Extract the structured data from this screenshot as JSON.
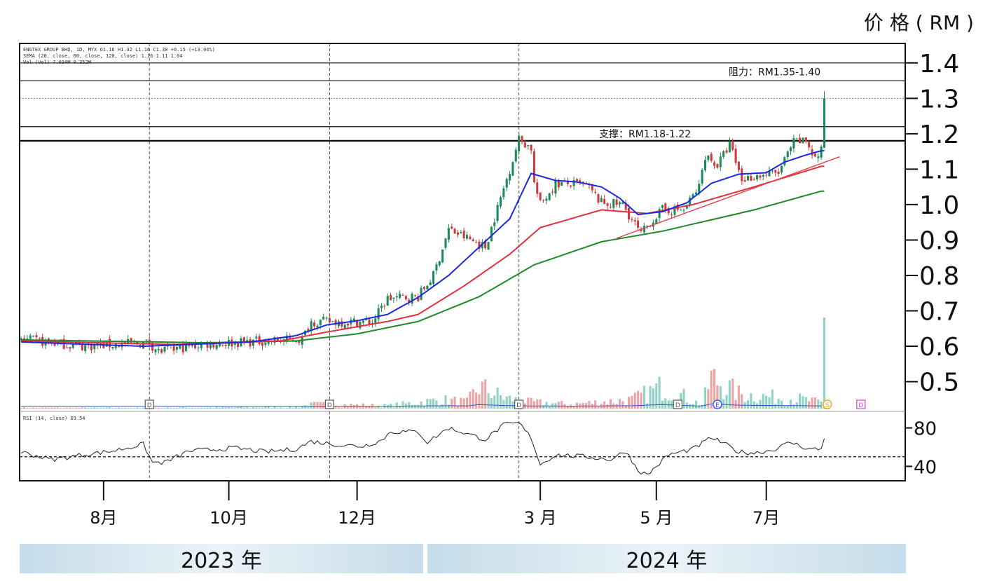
{
  "unit_label": "价 格 ( RM )",
  "legend_lines": [
    "ENGTEX GROUP BHD, 1D, MYX  O1.16 H1.32 L1.16 C1.30 +0.15 (+13.04%)",
    "3EMA (20, close, 60, close, 120, close)  1.16  1.11  1.04",
    "Vol (Vol)  7.034M  0.352M"
  ],
  "rsi_label": "RSI (14, close)  69.54",
  "chart_data": {
    "type": "candlestick",
    "title": "",
    "y_axis": {
      "ticks": [
        0.5,
        0.6,
        0.7,
        0.8,
        0.9,
        1.0,
        1.1,
        1.2,
        1.3,
        1.4
      ],
      "labels": [
        "0.5",
        "0.6",
        "0.7",
        "0.8",
        "0.9",
        "1.0",
        "1.1",
        "1.2",
        "1.3",
        "1.4"
      ],
      "ylim": [
        0.42,
        1.455
      ]
    },
    "rsi_axis": {
      "ticks": [
        40,
        80
      ],
      "labels": [
        "40",
        "80"
      ],
      "ylim": [
        25,
        95
      ],
      "reference_level": 50
    },
    "x_axis": {
      "labels": [
        "8月",
        "10月",
        "12月",
        "3 月",
        "5 月",
        "7月"
      ],
      "label_positions": [
        27,
        68,
        110,
        170,
        208,
        244
      ],
      "bars": 290
    },
    "years": [
      {
        "label": "2023 年",
        "start_bar": 0,
        "end_bar": 130
      },
      {
        "label": "2024 年",
        "start_bar": 130,
        "end_bar": 290
      }
    ],
    "event_markers": [
      {
        "bar": 42,
        "symbol": "D",
        "color": "#555555"
      },
      {
        "bar": 101,
        "symbol": "D",
        "color": "#555555"
      },
      {
        "bar": 163,
        "symbol": "D",
        "color": "#555555"
      },
      {
        "bar": 215,
        "symbol": "D",
        "color": "#555555"
      },
      {
        "bar": 228,
        "symbol": "E",
        "color": "#3355ee"
      },
      {
        "bar": 264,
        "symbol": "S",
        "color": "#f2a31b"
      },
      {
        "bar": 275,
        "symbol": "D",
        "color": "#cc44cc"
      }
    ],
    "vertical_markers": [
      42,
      101,
      163
    ],
    "zones": [
      {
        "label": "阻力：RM1.35-1.40",
        "low": 1.35,
        "high": 1.4
      },
      {
        "label": "支撑：RM1.18-1.22",
        "low": 1.18,
        "high": 1.22
      }
    ],
    "key_price_dotted": 1.3,
    "trendline": {
      "from": [
        195,
        0.905
      ],
      "to": [
        268,
        1.135
      ]
    },
    "ema_keypoints": {
      "ema20": [
        [
          0,
          0.612
        ],
        [
          40,
          0.6
        ],
        [
          75,
          0.612
        ],
        [
          90,
          0.63
        ],
        [
          100,
          0.66
        ],
        [
          110,
          0.672
        ],
        [
          120,
          0.69
        ],
        [
          130,
          0.738
        ],
        [
          140,
          0.8
        ],
        [
          150,
          0.88
        ],
        [
          160,
          0.96
        ],
        [
          167,
          1.088
        ],
        [
          175,
          1.068
        ],
        [
          182,
          1.064
        ],
        [
          190,
          1.05
        ],
        [
          196,
          1.018
        ],
        [
          202,
          0.972
        ],
        [
          210,
          0.98
        ],
        [
          218,
          1.005
        ],
        [
          226,
          1.06
        ],
        [
          235,
          1.086
        ],
        [
          244,
          1.09
        ],
        [
          250,
          1.12
        ],
        [
          257,
          1.14
        ],
        [
          262,
          1.152
        ]
      ],
      "ema60": [
        [
          0,
          0.615
        ],
        [
          50,
          0.605
        ],
        [
          85,
          0.615
        ],
        [
          100,
          0.64
        ],
        [
          120,
          0.67
        ],
        [
          130,
          0.69
        ],
        [
          145,
          0.77
        ],
        [
          160,
          0.86
        ],
        [
          170,
          0.935
        ],
        [
          190,
          0.985
        ],
        [
          205,
          0.975
        ],
        [
          220,
          1.0
        ],
        [
          240,
          1.05
        ],
        [
          262,
          1.108
        ]
      ],
      "ema120": [
        [
          0,
          0.618
        ],
        [
          60,
          0.61
        ],
        [
          90,
          0.615
        ],
        [
          110,
          0.635
        ],
        [
          130,
          0.67
        ],
        [
          150,
          0.74
        ],
        [
          160,
          0.79
        ],
        [
          168,
          0.83
        ],
        [
          190,
          0.895
        ],
        [
          210,
          0.925
        ],
        [
          240,
          0.985
        ],
        [
          262,
          1.038
        ]
      ]
    },
    "close_keypoints": [
      [
        0,
        0.62
      ],
      [
        20,
        0.6
      ],
      [
        42,
        0.61
      ],
      [
        45,
        0.585
      ],
      [
        60,
        0.606
      ],
      [
        80,
        0.615
      ],
      [
        92,
        0.62
      ],
      [
        95,
        0.67
      ],
      [
        115,
        0.668
      ],
      [
        120,
        0.735
      ],
      [
        130,
        0.74
      ],
      [
        135,
        0.8
      ],
      [
        140,
        0.93
      ],
      [
        146,
        0.905
      ],
      [
        152,
        0.88
      ],
      [
        160,
        1.1
      ],
      [
        163,
        1.185
      ],
      [
        167,
        1.16
      ],
      [
        168,
        1.06
      ],
      [
        170,
        1.0
      ],
      [
        175,
        1.06
      ],
      [
        185,
        1.055
      ],
      [
        190,
        1.005
      ],
      [
        197,
        1.0
      ],
      [
        203,
        0.915
      ],
      [
        205,
        0.94
      ],
      [
        210,
        0.985
      ],
      [
        217,
        0.985
      ],
      [
        222,
        1.05
      ],
      [
        224,
        1.14
      ],
      [
        228,
        1.11
      ],
      [
        232,
        1.17
      ],
      [
        236,
        1.07
      ],
      [
        240,
        1.08
      ],
      [
        248,
        1.09
      ],
      [
        253,
        1.175
      ],
      [
        257,
        1.18
      ],
      [
        260,
        1.13
      ],
      [
        262,
        1.15
      ],
      [
        263,
        1.3
      ]
    ],
    "volume_keypoints": [
      [
        0,
        0.012
      ],
      [
        40,
        0.01
      ],
      [
        90,
        0.02
      ],
      [
        96,
        0.06
      ],
      [
        120,
        0.04
      ],
      [
        138,
        0.12
      ],
      [
        146,
        0.09
      ],
      [
        150,
        0.3
      ],
      [
        158,
        0.15
      ],
      [
        166,
        0.09
      ],
      [
        180,
        0.06
      ],
      [
        200,
        0.12
      ],
      [
        210,
        0.3
      ],
      [
        223,
        0.05
      ],
      [
        226,
        0.42
      ],
      [
        235,
        0.2
      ],
      [
        245,
        0.16
      ],
      [
        255,
        0.13
      ],
      [
        262,
        0.08
      ],
      [
        263,
        1.0
      ]
    ],
    "rsi_keypoints": [
      [
        0,
        55
      ],
      [
        10,
        47
      ],
      [
        20,
        52
      ],
      [
        30,
        56
      ],
      [
        40,
        63
      ],
      [
        43,
        44
      ],
      [
        47,
        44
      ],
      [
        55,
        56
      ],
      [
        70,
        59
      ],
      [
        80,
        55
      ],
      [
        90,
        58
      ],
      [
        95,
        66
      ],
      [
        105,
        62
      ],
      [
        112,
        61
      ],
      [
        118,
        67
      ],
      [
        121,
        76
      ],
      [
        130,
        76
      ],
      [
        133,
        65
      ],
      [
        140,
        80
      ],
      [
        148,
        72
      ],
      [
        152,
        68
      ],
      [
        158,
        83
      ],
      [
        163,
        85
      ],
      [
        167,
        70
      ],
      [
        170,
        42
      ],
      [
        175,
        52
      ],
      [
        185,
        50
      ],
      [
        193,
        47
      ],
      [
        198,
        56
      ],
      [
        202,
        36
      ],
      [
        205,
        31
      ],
      [
        212,
        52
      ],
      [
        220,
        58
      ],
      [
        226,
        70
      ],
      [
        230,
        64
      ],
      [
        235,
        55
      ],
      [
        240,
        54
      ],
      [
        246,
        57
      ],
      [
        252,
        65
      ],
      [
        258,
        58
      ],
      [
        262,
        58
      ],
      [
        263,
        69
      ]
    ]
  }
}
